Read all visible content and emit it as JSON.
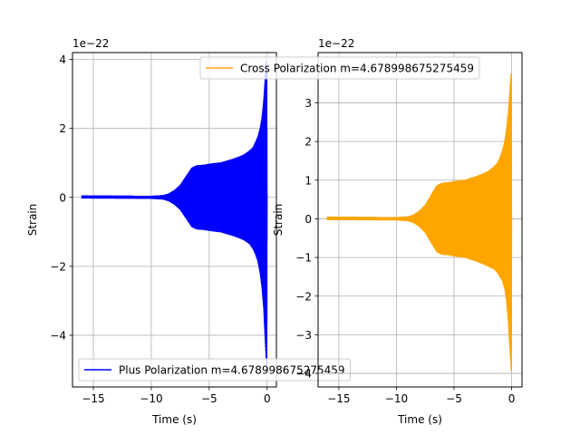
{
  "chart_data": [
    {
      "type": "line",
      "xlabel": "Time (s)",
      "ylabel": "Strain",
      "offset_text": "1e−22",
      "xlim": [
        -16.8,
        0.8
      ],
      "ylim": [
        -5.5,
        4.2
      ],
      "xticks": [
        -15,
        -10,
        -5,
        0
      ],
      "xtick_labels": [
        "−15",
        "−10",
        "−5",
        "0"
      ],
      "yticks": [
        -4,
        -2,
        0,
        2,
        4
      ],
      "ytick_labels": [
        "−4",
        "−2",
        "0",
        "2",
        "4"
      ],
      "grid": true,
      "legend_placement": "lower-left",
      "series": [
        {
          "name": "Plus Polarization m=4.678998675275459",
          "color": "#0000ff",
          "envelope_x": [
            -16,
            -10,
            -9,
            -8.5,
            -8,
            -7.5,
            -7,
            -6.5,
            -6.2,
            -6,
            -5.5,
            -5,
            -4.5,
            -4,
            -3.5,
            -3,
            -2.5,
            -2,
            -1.5,
            -1.2,
            -1,
            -0.8,
            -0.6,
            -0.45,
            -0.3,
            -0.2,
            -0.1,
            -0.03,
            0
          ],
          "envelope_upper": [
            0.04,
            0.03,
            0.05,
            0.1,
            0.2,
            0.35,
            0.6,
            0.85,
            0.9,
            0.92,
            0.93,
            0.96,
            0.98,
            1.0,
            1.05,
            1.1,
            1.16,
            1.23,
            1.35,
            1.45,
            1.6,
            1.75,
            2.0,
            2.3,
            2.8,
            3.3,
            3.8,
            4.0,
            0.1
          ],
          "envelope_lower": [
            -0.02,
            -0.03,
            -0.05,
            -0.1,
            -0.2,
            -0.35,
            -0.6,
            -0.85,
            -0.9,
            -0.92,
            -0.93,
            -0.96,
            -0.98,
            -1.0,
            -1.05,
            -1.1,
            -1.16,
            -1.23,
            -1.35,
            -1.5,
            -1.65,
            -1.85,
            -2.2,
            -2.6,
            -3.2,
            -3.9,
            -4.6,
            -4.95,
            -0.1
          ]
        }
      ]
    },
    {
      "type": "line",
      "xlabel": "Time (s)",
      "ylabel": "Strain",
      "offset_text": "1e−22",
      "xlim": [
        -16.8,
        0.9
      ],
      "ylim": [
        -4.35,
        4.3
      ],
      "xticks": [
        -15,
        -10,
        -5,
        0
      ],
      "xtick_labels": [
        "−15",
        "−10",
        "−5",
        "0"
      ],
      "yticks": [
        -4,
        -3,
        -2,
        -1,
        0,
        1,
        2,
        3
      ],
      "ytick_labels": [
        "−4",
        "−3",
        "−2",
        "−1",
        "0",
        "1",
        "2",
        "3"
      ],
      "grid": true,
      "legend_placement": "upper-right",
      "series": [
        {
          "name": "Cross Polarization m=4.678998675275459",
          "color": "#ffa500",
          "envelope_x": [
            -16,
            -10,
            -9,
            -8.5,
            -8,
            -7.5,
            -7,
            -6.5,
            -6.2,
            -6,
            -5.5,
            -5,
            -4.5,
            -4,
            -3.5,
            -3,
            -2.5,
            -2,
            -1.5,
            -1.2,
            -1,
            -0.8,
            -0.6,
            -0.45,
            -0.3,
            -0.2,
            -0.1,
            -0.03,
            0
          ],
          "envelope_upper": [
            0.04,
            0.03,
            0.05,
            0.1,
            0.2,
            0.35,
            0.6,
            0.85,
            0.9,
            0.92,
            0.93,
            0.96,
            0.98,
            1.0,
            1.05,
            1.1,
            1.16,
            1.23,
            1.35,
            1.45,
            1.6,
            1.75,
            2.0,
            2.3,
            2.7,
            3.1,
            3.55,
            3.8,
            0.1
          ],
          "envelope_lower": [
            -0.02,
            -0.03,
            -0.05,
            -0.1,
            -0.2,
            -0.35,
            -0.6,
            -0.85,
            -0.9,
            -0.92,
            -0.93,
            -0.96,
            -0.98,
            -1.0,
            -1.05,
            -1.1,
            -1.16,
            -1.23,
            -1.3,
            -1.4,
            -1.5,
            -1.6,
            -1.8,
            -2.1,
            -2.6,
            -3.1,
            -3.6,
            -3.95,
            -0.1
          ]
        }
      ]
    }
  ]
}
